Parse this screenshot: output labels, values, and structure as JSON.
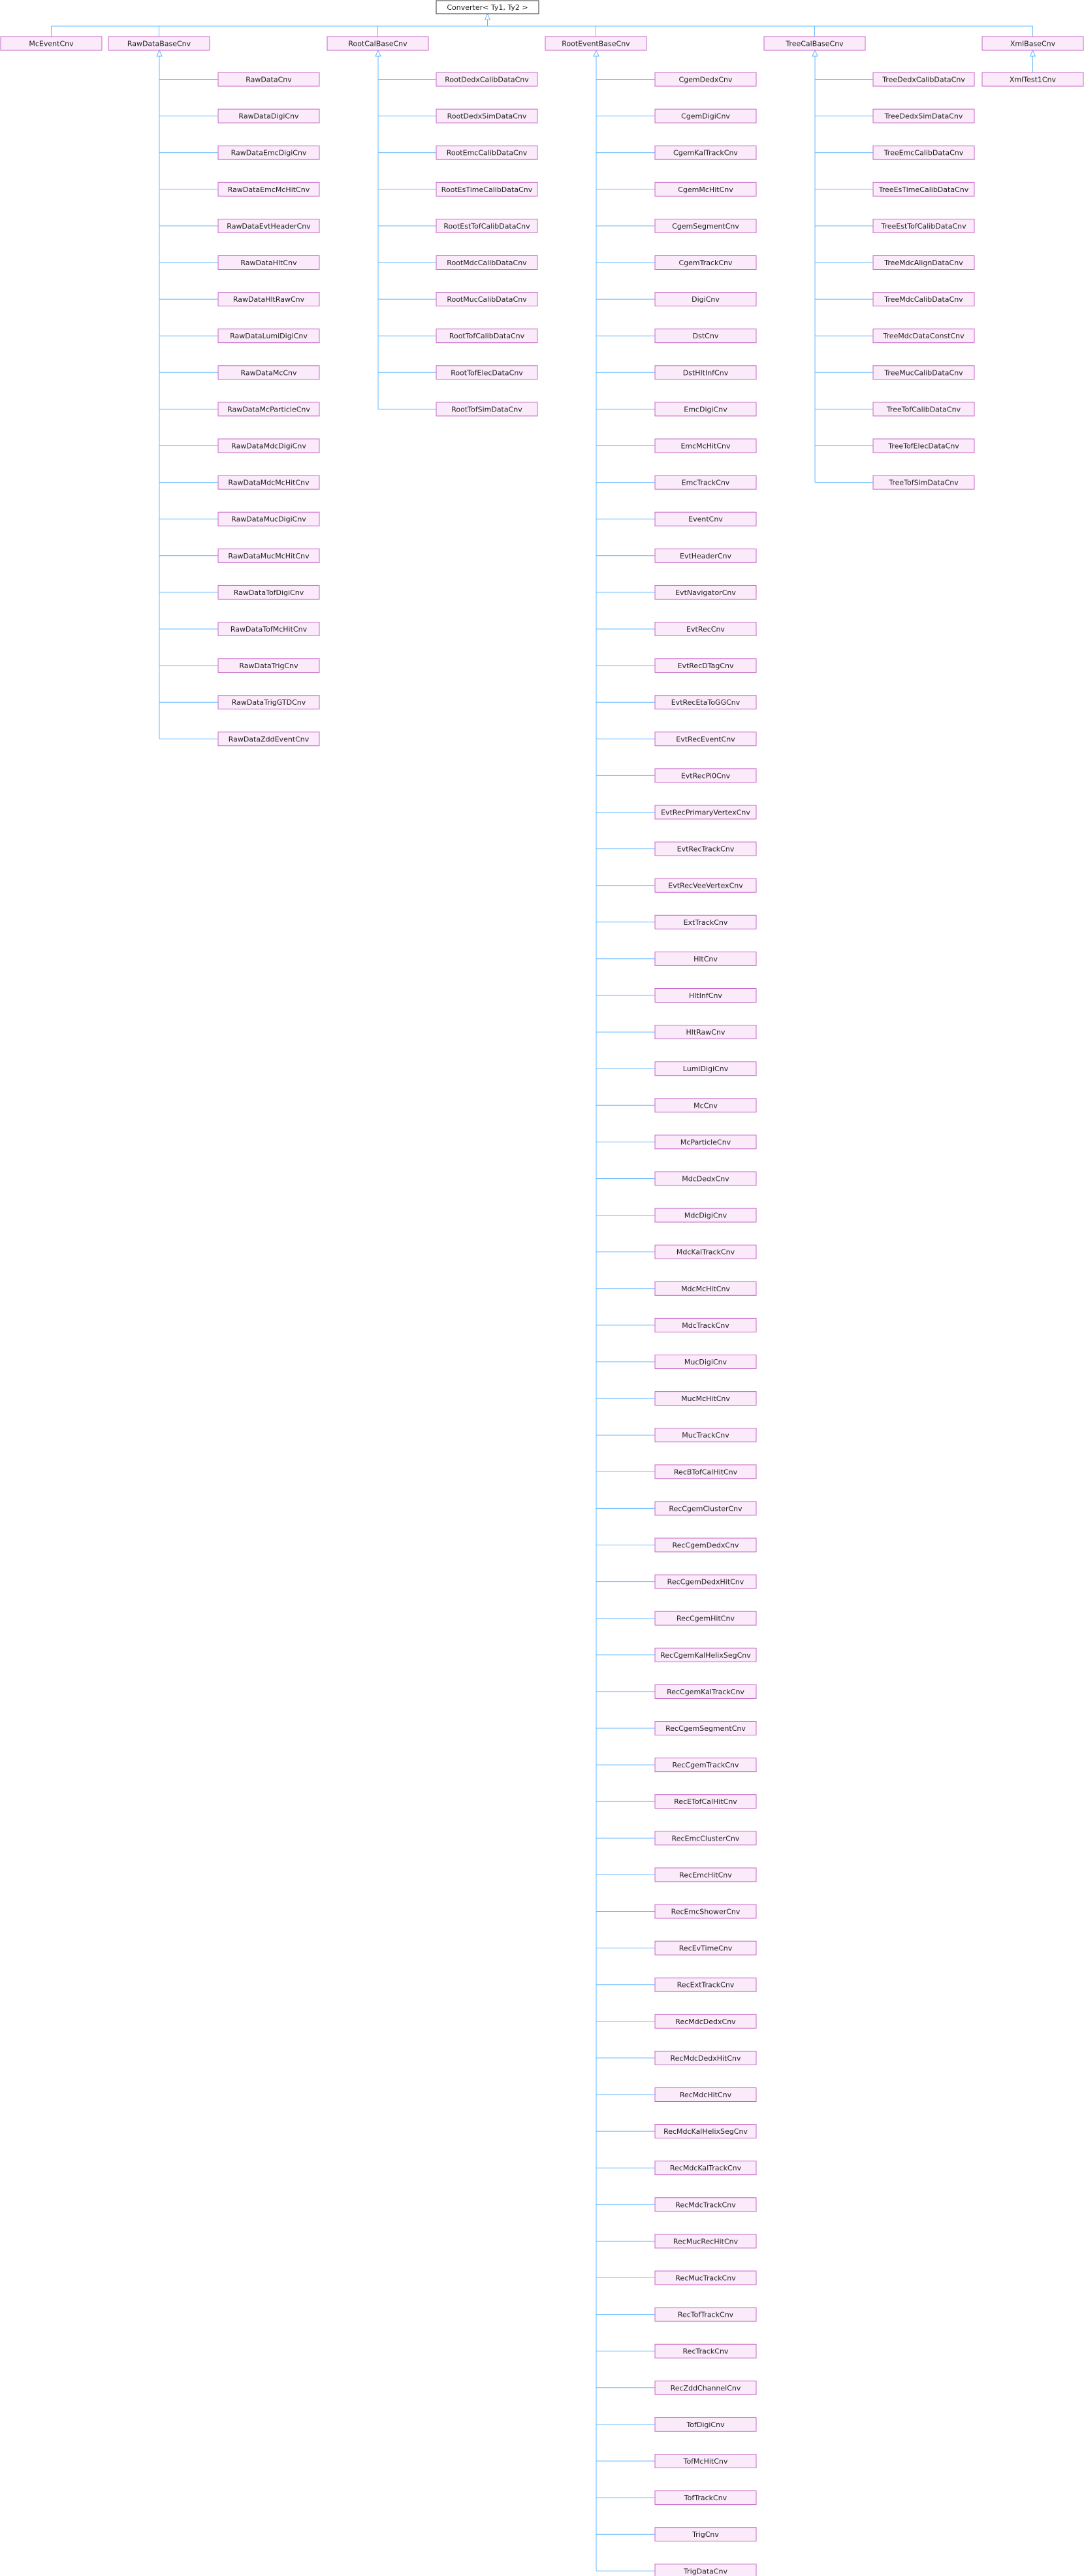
{
  "root": "Converter< Ty1, Ty2 >",
  "columns": [
    {
      "parent": "McEventCnv",
      "children": []
    },
    {
      "parent": "RawDataBaseCnv",
      "children": [
        "RawDataCnv",
        "RawDataDigiCnv",
        "RawDataEmcDigiCnv",
        "RawDataEmcMcHitCnv",
        "RawDataEvtHeaderCnv",
        "RawDataHltCnv",
        "RawDataHltRawCnv",
        "RawDataLumiDigiCnv",
        "RawDataMcCnv",
        "RawDataMcParticleCnv",
        "RawDataMdcDigiCnv",
        "RawDataMdcMcHitCnv",
        "RawDataMucDigiCnv",
        "RawDataMucMcHitCnv",
        "RawDataTofDigiCnv",
        "RawDataTofMcHitCnv",
        "RawDataTrigCnv",
        "RawDataTrigGTDCnv",
        "RawDataZddEventCnv"
      ]
    },
    {
      "parent": "RootCalBaseCnv",
      "children": [
        "RootDedxCalibDataCnv",
        "RootDedxSimDataCnv",
        "RootEmcCalibDataCnv",
        "RootEsTimeCalibDataCnv",
        "RootEstTofCalibDataCnv",
        "RootMdcCalibDataCnv",
        "RootMucCalibDataCnv",
        "RootTofCalibDataCnv",
        "RootTofElecDataCnv",
        "RootTofSimDataCnv"
      ]
    },
    {
      "parent": "RootEventBaseCnv",
      "children": [
        "CgemDedxCnv",
        "CgemDigiCnv",
        "CgemKalTrackCnv",
        "CgemMcHitCnv",
        "CgemSegmentCnv",
        "CgemTrackCnv",
        "DigiCnv",
        "DstCnv",
        "DstHltInfCnv",
        "EmcDigiCnv",
        "EmcMcHitCnv",
        "EmcTrackCnv",
        "EventCnv",
        "EvtHeaderCnv",
        "EvtNavigatorCnv",
        "EvtRecCnv",
        "EvtRecDTagCnv",
        "EvtRecEtaToGGCnv",
        "EvtRecEventCnv",
        "EvtRecPi0Cnv",
        "EvtRecPrimaryVertexCnv",
        "EvtRecTrackCnv",
        "EvtRecVeeVertexCnv",
        "ExtTrackCnv",
        "HltCnv",
        "HltInfCnv",
        "HltRawCnv",
        "LumiDigiCnv",
        "McCnv",
        "McParticleCnv",
        "MdcDedxCnv",
        "MdcDigiCnv",
        "MdcKalTrackCnv",
        "MdcMcHitCnv",
        "MdcTrackCnv",
        "MucDigiCnv",
        "MucMcHitCnv",
        "MucTrackCnv",
        "RecBTofCalHitCnv",
        "RecCgemClusterCnv",
        "RecCgemDedxCnv",
        "RecCgemDedxHitCnv",
        "RecCgemHitCnv",
        "RecCgemKalHelixSegCnv",
        "RecCgemKalTrackCnv",
        "RecCgemSegmentCnv",
        "RecCgemTrackCnv",
        "RecETofCalHitCnv",
        "RecEmcClusterCnv",
        "RecEmcHitCnv",
        "RecEmcShowerCnv",
        "RecEvTimeCnv",
        "RecExtTrackCnv",
        "RecMdcDedxCnv",
        "RecMdcDedxHitCnv",
        "RecMdcHitCnv",
        "RecMdcKalHelixSegCnv",
        "RecMdcKalTrackCnv",
        "RecMdcTrackCnv",
        "RecMucRecHitCnv",
        "RecMucTrackCnv",
        "RecTofTrackCnv",
        "RecTrackCnv",
        "RecZddChannelCnv",
        "TofDigiCnv",
        "TofMcHitCnv",
        "TofTrackCnv",
        "TrigCnv",
        "TrigDataCnv"
      ]
    },
    {
      "parent": "TreeCalBaseCnv",
      "children": [
        "TreeDedxCalibDataCnv",
        "TreeDedxSimDataCnv",
        "TreeEmcCalibDataCnv",
        "TreeEsTimeCalibDataCnv",
        "TreeEstTofCalibDataCnv",
        "TreeMdcAlignDataCnv",
        "TreeMdcCalibDataCnv",
        "TreeMdcDataConstCnv",
        "TreeMucCalibDataCnv",
        "TreeTofCalibDataCnv",
        "TreeTofElecDataCnv",
        "TreeTofSimDataCnv"
      ]
    },
    {
      "parent": "XmlBaseCnv",
      "children": [
        "XmlTest1Cnv"
      ]
    }
  ]
}
